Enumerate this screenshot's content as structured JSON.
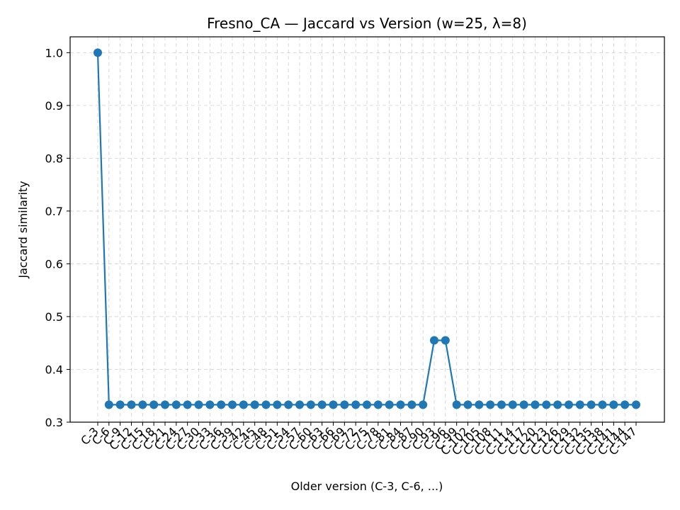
{
  "chart_data": {
    "type": "line",
    "title": "Fresno_CA — Jaccard vs Version (w=25, λ=8)",
    "xlabel": "Older version (C-3, C-6, ...)",
    "ylabel": "Jaccard similarity",
    "ylim": [
      0.3,
      1.03
    ],
    "yticks": [
      0.3,
      0.4,
      0.5,
      0.6,
      0.7,
      0.8,
      0.9,
      1.0
    ],
    "grid": true,
    "color": "#1f77b4",
    "categories": [
      "C-3",
      "C-6",
      "C-9",
      "C-12",
      "C-15",
      "C-18",
      "C-21",
      "C-24",
      "C-27",
      "C-30",
      "C-33",
      "C-36",
      "C-39",
      "C-42",
      "C-45",
      "C-48",
      "C-51",
      "C-54",
      "C-57",
      "C-60",
      "C-63",
      "C-66",
      "C-69",
      "C-72",
      "C-75",
      "C-78",
      "C-81",
      "C-84",
      "C-87",
      "C-90",
      "C-93",
      "C-96",
      "C-99",
      "C-102",
      "C-105",
      "C-108",
      "C-111",
      "C-114",
      "C-117",
      "C-120",
      "C-123",
      "C-126",
      "C-129",
      "C-132",
      "C-135",
      "C-138",
      "C-141",
      "C-144",
      "C-147"
    ],
    "series": [
      {
        "values": [
          1.0,
          0.333,
          0.333,
          0.333,
          0.333,
          0.333,
          0.333,
          0.333,
          0.333,
          0.333,
          0.333,
          0.333,
          0.333,
          0.333,
          0.333,
          0.333,
          0.333,
          0.333,
          0.333,
          0.333,
          0.333,
          0.333,
          0.333,
          0.333,
          0.333,
          0.333,
          0.333,
          0.333,
          0.333,
          0.333,
          0.455,
          0.455,
          0.333,
          0.333,
          0.333,
          0.333,
          0.333,
          0.333,
          0.333,
          0.333,
          0.333,
          0.333,
          0.333,
          0.333,
          0.333,
          0.333,
          0.333,
          0.333,
          0.333
        ]
      }
    ]
  }
}
